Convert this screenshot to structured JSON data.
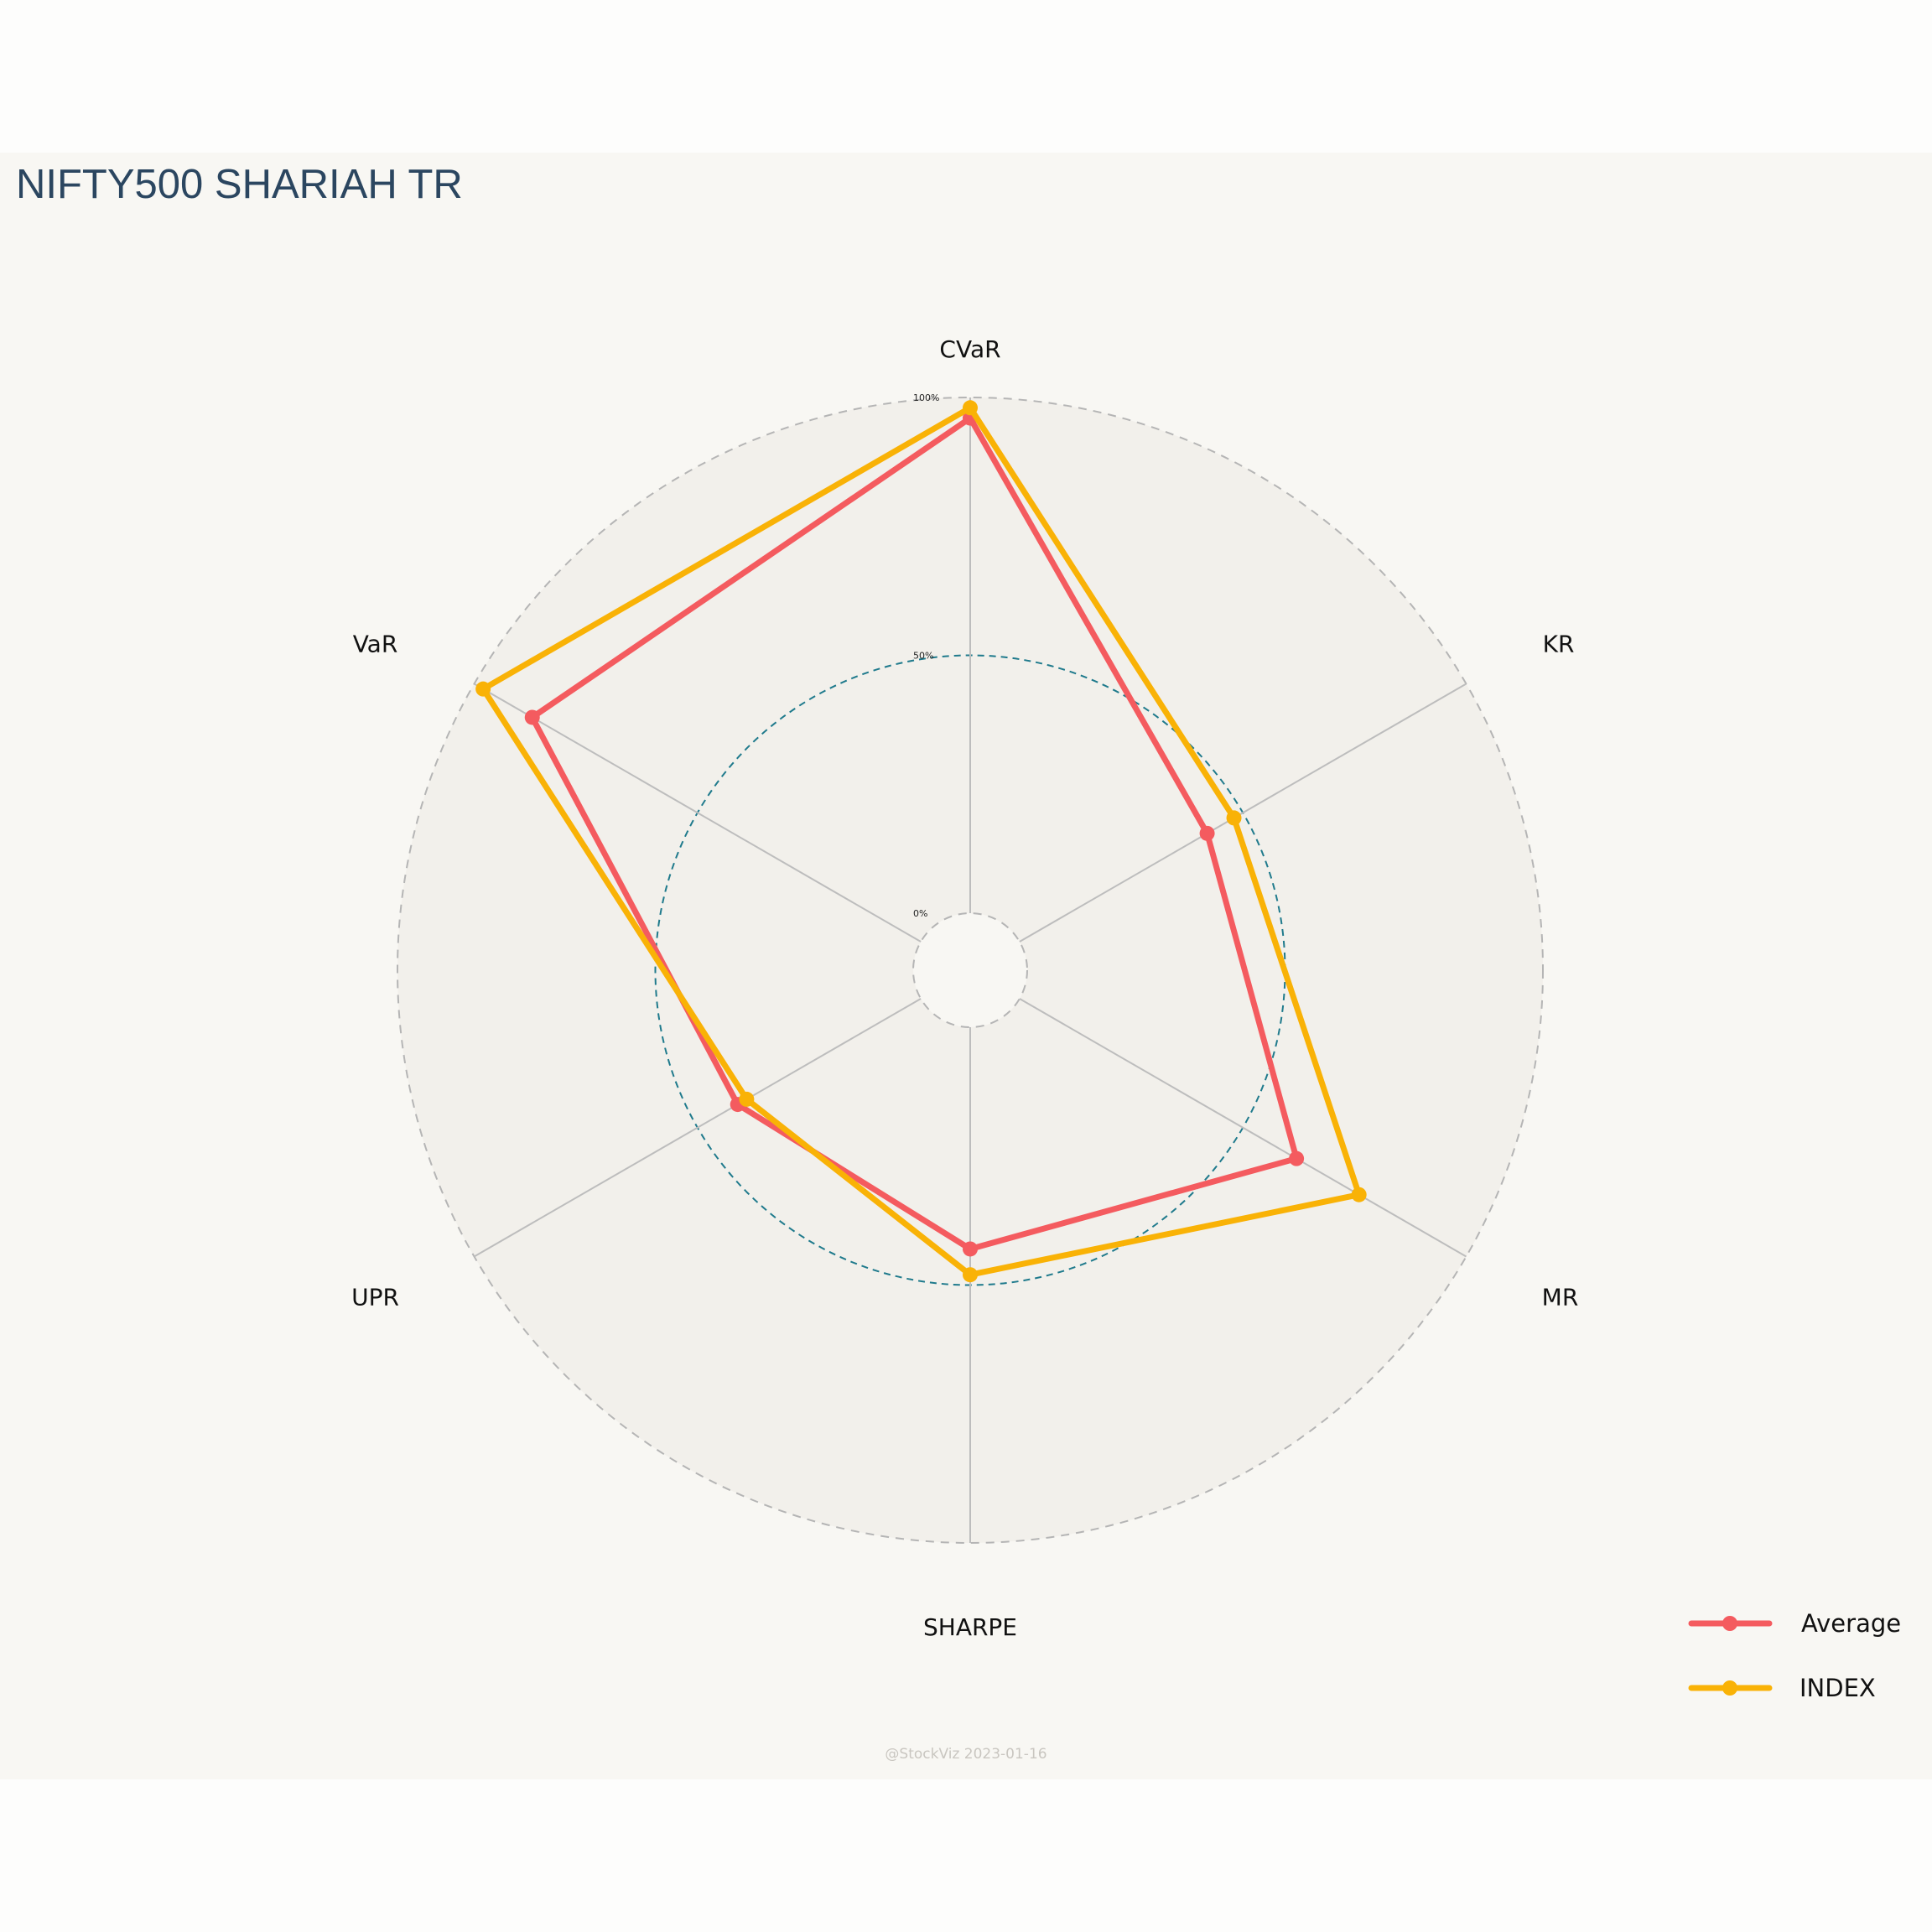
{
  "title": "NIFTY500 SHARIAH TR",
  "credit": "@StockViz 2023-01-16",
  "colors": {
    "average": "#f45b5f",
    "index": "#f9b206",
    "grid_mid": "#1f7a8c",
    "grid_outer": "#b5b5b5",
    "spoke": "#bdbdbd",
    "plot_fill": "#f2f0eb"
  },
  "chart_data": {
    "type": "radar",
    "axes": [
      "CVaR",
      "KR",
      "MR",
      "SHARPE",
      "UPR",
      "VaR"
    ],
    "radial_ticks": [
      "0%",
      "50%",
      "100%"
    ],
    "rlim": [
      0,
      100
    ],
    "grid": true,
    "legend_position": "bottom-right",
    "series": [
      {
        "name": "Average",
        "values": [
          96,
          42,
          62,
          43,
          41,
          87
        ]
      },
      {
        "name": "INDEX",
        "values": [
          98,
          48,
          76,
          48,
          39,
          98
        ]
      }
    ]
  }
}
